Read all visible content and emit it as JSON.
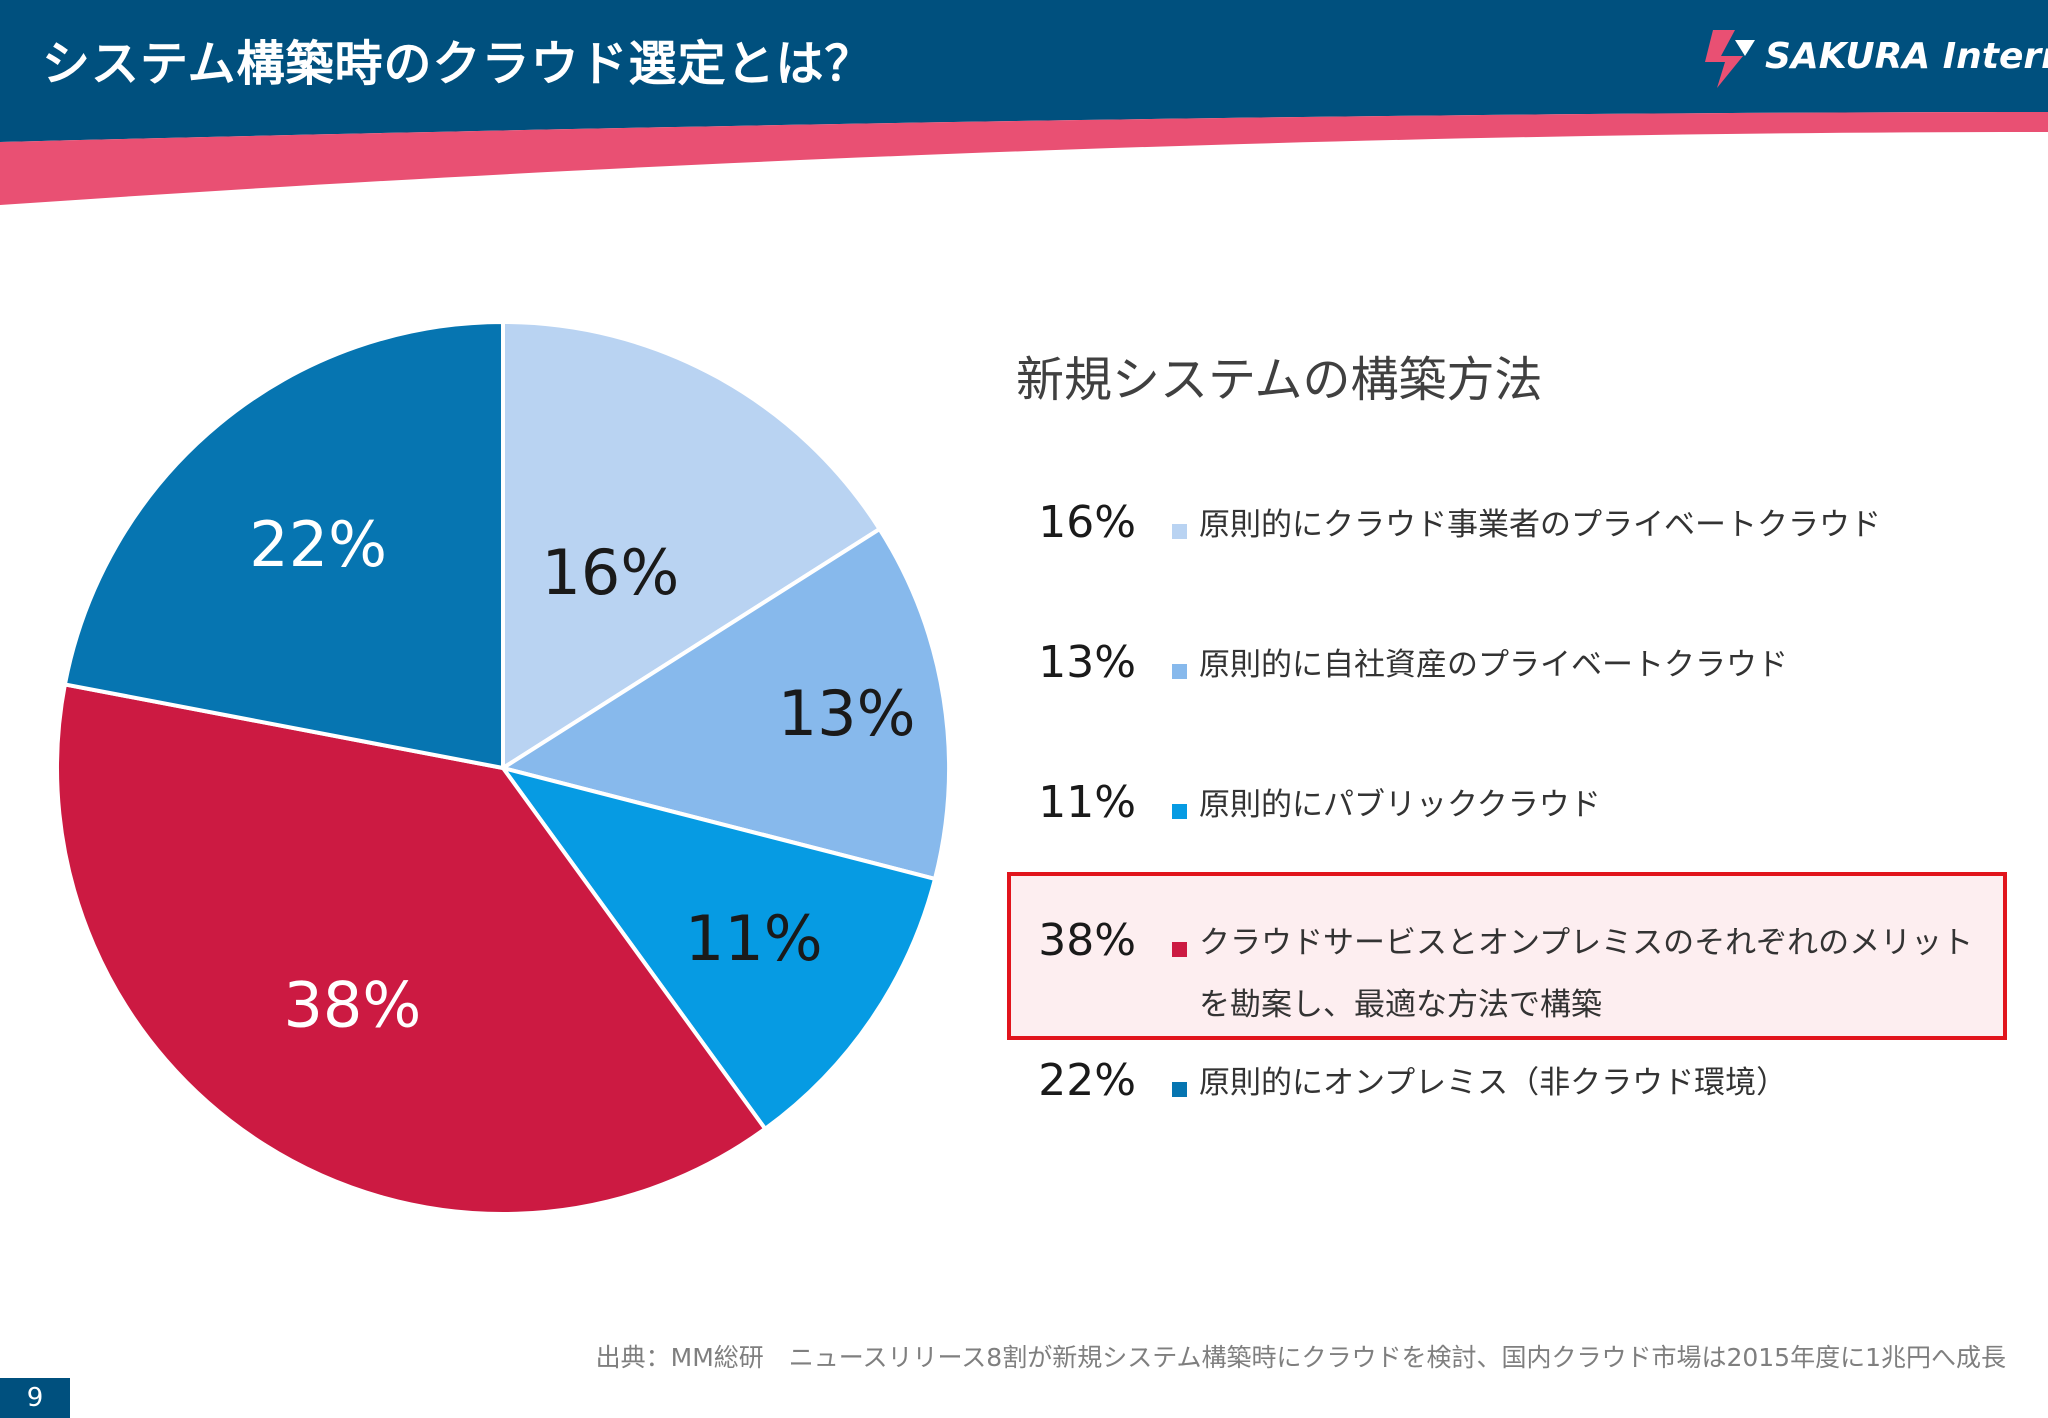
{
  "slide": {
    "title": "システム構築時のクラウド選定とは？",
    "logo_text": "SAKURA Internet",
    "page_number": "9"
  },
  "colors": {
    "header_navy": "#00507e",
    "header_accent": "#e95073",
    "highlight_border": "#e1141c",
    "highlight_fill": "#fdeef0"
  },
  "legend": {
    "title": "新規システムの構築方法",
    "items": [
      {
        "pct": "16%",
        "label": "原則的にクラウド事業者のプライベートクラウド",
        "color": "#b9d3f2"
      },
      {
        "pct": "13%",
        "label": "原則的に自社資産のプライベートクラウド",
        "color": "#87b9ec"
      },
      {
        "pct": "11%",
        "label": "原則的にパブリッククラウド",
        "color": "#069be3"
      },
      {
        "pct": "38%",
        "label": "クラウドサービスとオンプレミスのそれぞれのメリットを勘案し、最適な方法で構築",
        "color": "#cc1a42"
      },
      {
        "pct": "22%",
        "label": "原則的にオンプレミス（非クラウド環境）",
        "color": "#0675b1"
      }
    ]
  },
  "source_note": "出典：MM総研　ニュースリリース8割が新規システム構築時にクラウドを検討、国内クラウド市場は2015年度に1兆円へ成長",
  "chart_data": {
    "type": "pie",
    "categories": [
      "原則的にクラウド事業者のプライベートクラウド",
      "原則的に自社資産のプライベートクラウド",
      "原則的にパブリッククラウド",
      "クラウドサービスとオンプレミスのそれぞれのメリットを勘案し、最適な方法で構築",
      "原則的にオンプレミス（非クラウド環境）"
    ],
    "values": [
      16,
      13,
      11,
      38,
      22
    ],
    "labels": [
      "16%",
      "13%",
      "11%",
      "38%",
      "22%"
    ],
    "colors": [
      "#b9d3f2",
      "#87b9ec",
      "#069be3",
      "#cc1a42",
      "#0675b1"
    ],
    "label_colors": [
      "#1a1a1a",
      "#1a1a1a",
      "#1a1a1a",
      "#ffffff",
      "#ffffff"
    ],
    "start": "12 o'clock, clockwise",
    "title": "新規システムの構築方法",
    "legend": "right"
  }
}
